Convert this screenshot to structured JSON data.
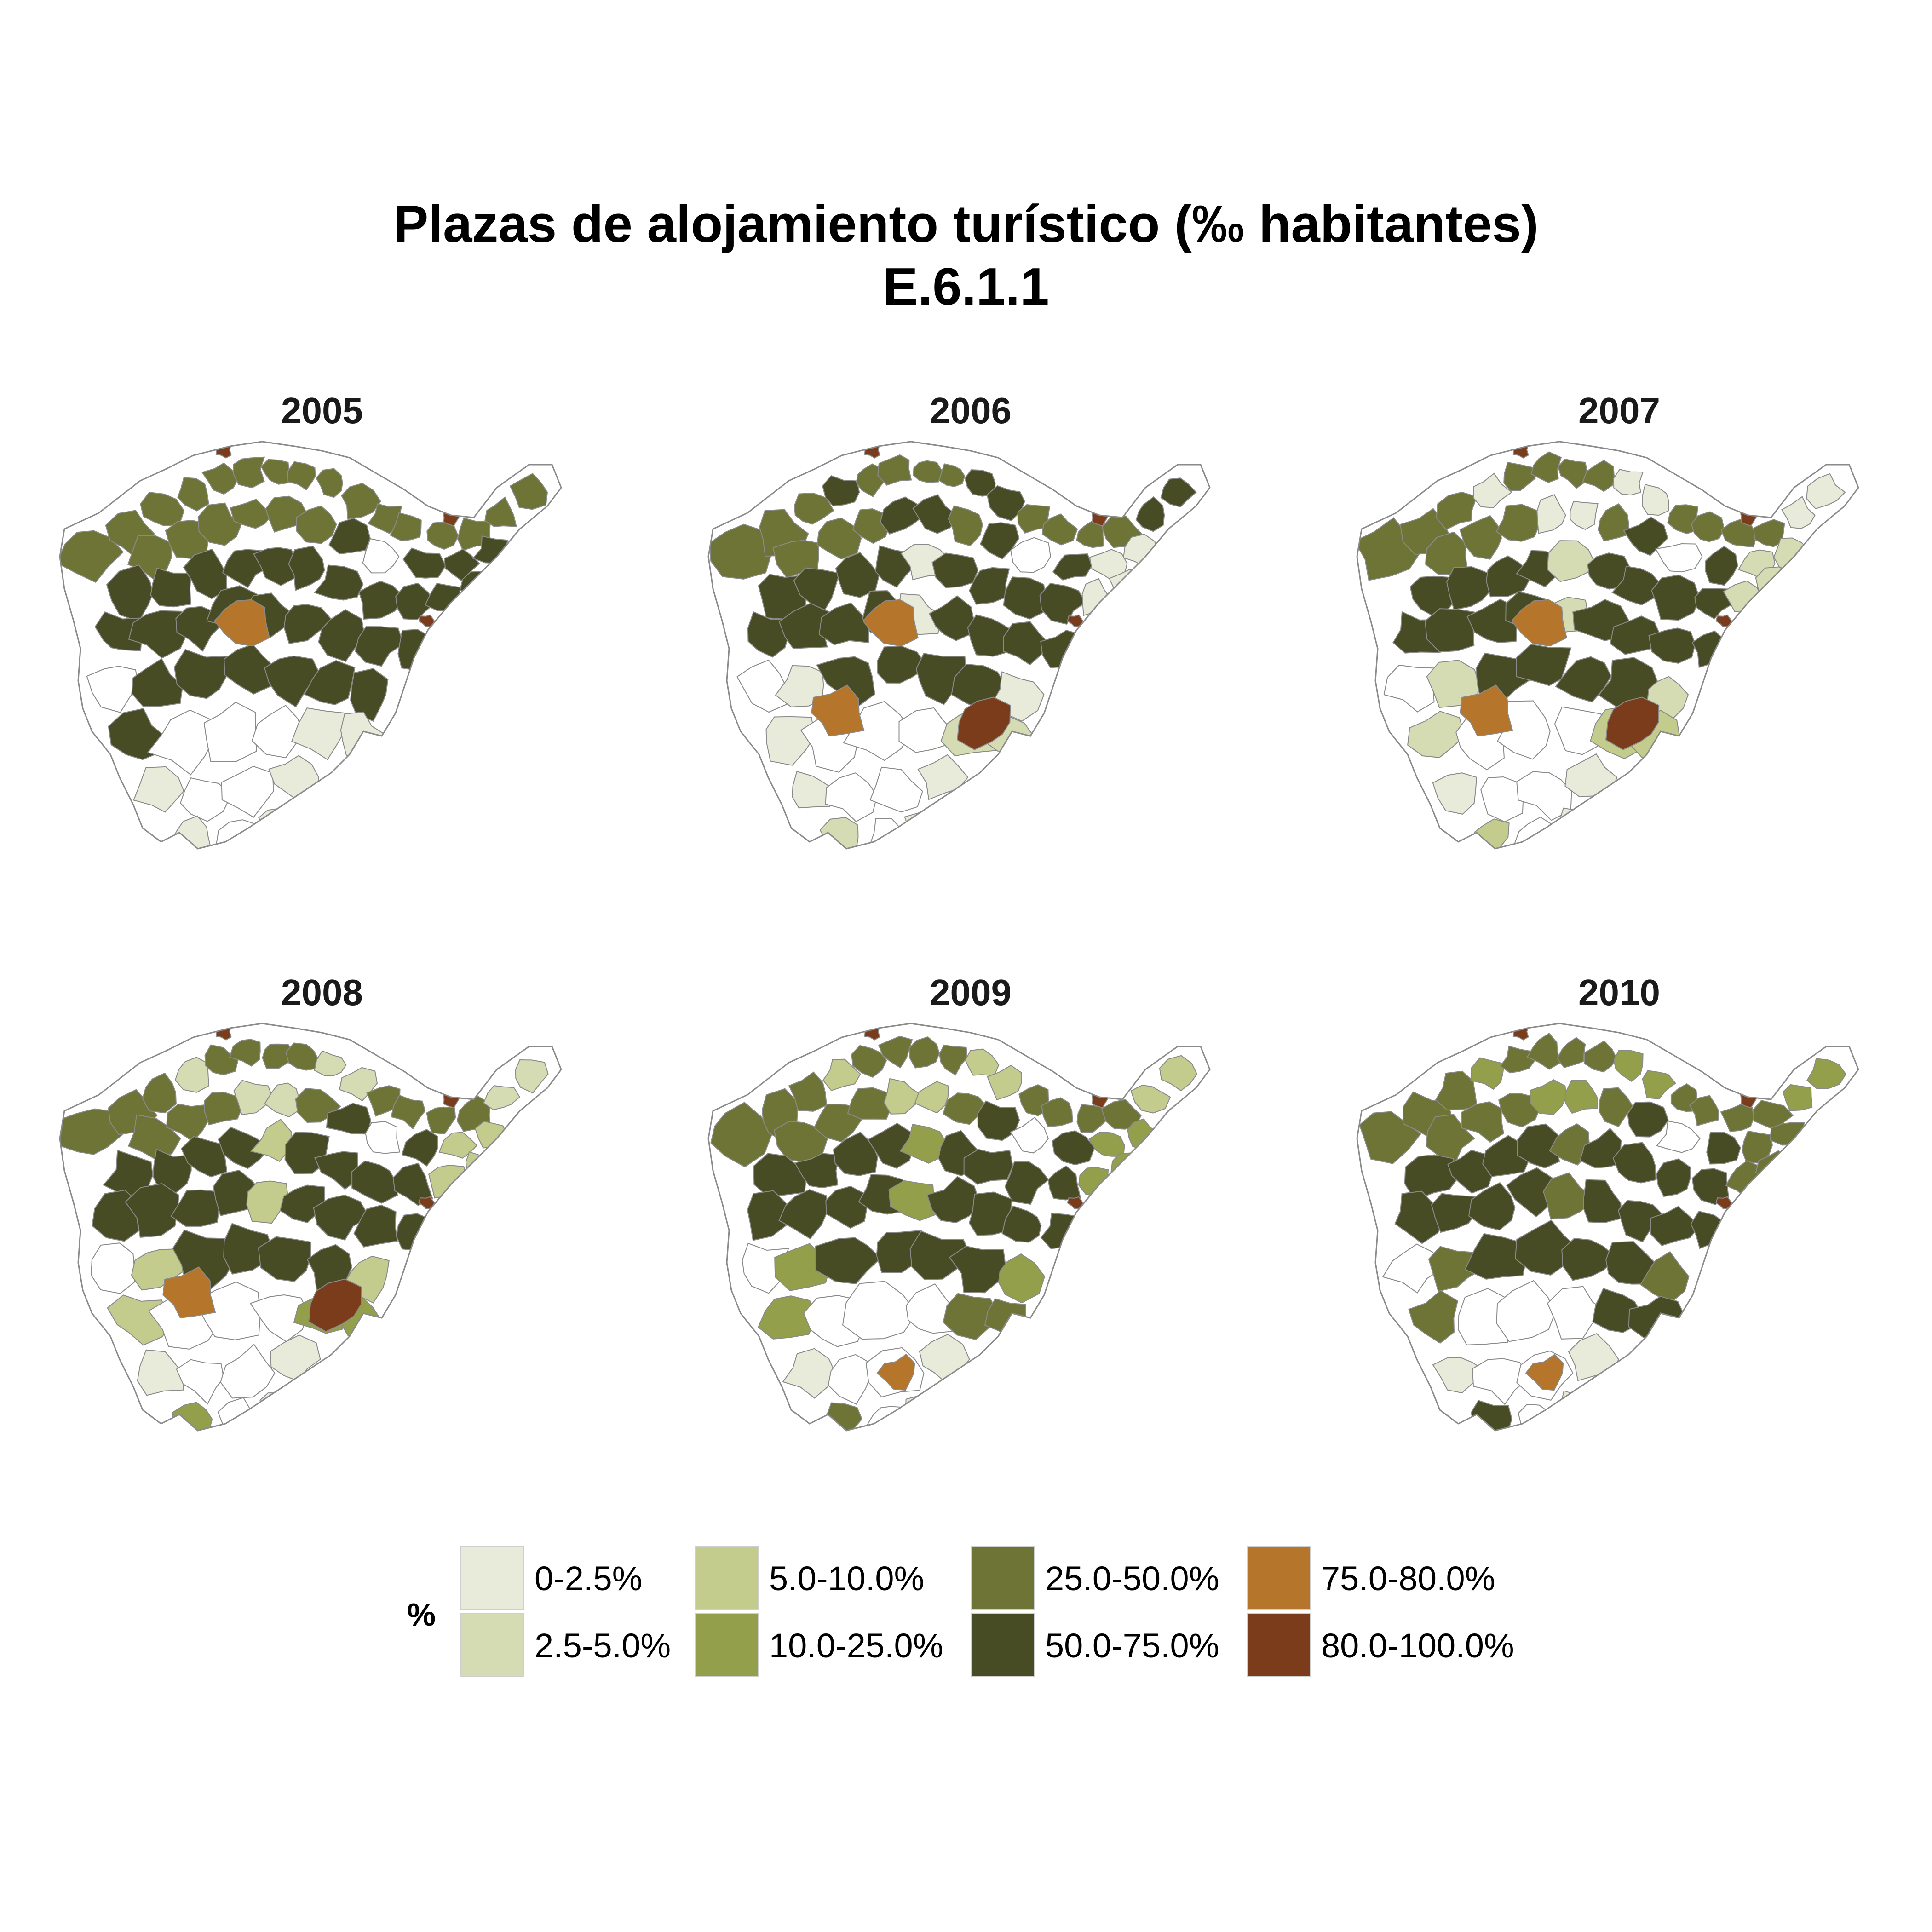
{
  "title": {
    "line1": "Plazas de alojamiento turístico (‰ habitantes)",
    "line2": "E.6.1.1"
  },
  "legend": {
    "title": "%",
    "classes": [
      {
        "label": "0-2.5%",
        "color": "#e8eada"
      },
      {
        "label": "2.5-5.0%",
        "color": "#d5dcb4"
      },
      {
        "label": "5.0-10.0%",
        "color": "#c3cc8d"
      },
      {
        "label": "10.0-25.0%",
        "color": "#949f4b"
      },
      {
        "label": "25.0-50.0%",
        "color": "#6e7436"
      },
      {
        "label": "50.0-75.0%",
        "color": "#474c25"
      },
      {
        "label": "75.0-80.0%",
        "color": "#b5762c"
      },
      {
        "label": "80.0-100.0%",
        "color": "#7a3c1b"
      }
    ]
  },
  "colors": {
    "no_data_fill": "#ffffff",
    "border": "#8a8a8a"
  },
  "panels": [
    {
      "year": "2005",
      "class_shift": 0,
      "orange_west": false,
      "brown_south": false,
      "orange_center": true,
      "orange_southwest": false
    },
    {
      "year": "2006",
      "class_shift": 1,
      "orange_west": true,
      "brown_south": true,
      "orange_center": true,
      "orange_southwest": false
    },
    {
      "year": "2007",
      "class_shift": 2,
      "orange_west": true,
      "brown_south": true,
      "orange_center": true,
      "orange_southwest": false
    },
    {
      "year": "2008",
      "class_shift": 3,
      "orange_west": true,
      "brown_south": true,
      "orange_center": false,
      "orange_southwest": false
    },
    {
      "year": "2009",
      "class_shift": 4,
      "orange_west": false,
      "brown_south": false,
      "orange_center": false,
      "orange_southwest": true
    },
    {
      "year": "2010",
      "class_shift": 5,
      "orange_west": false,
      "brown_south": false,
      "orange_center": false,
      "orange_southwest": true
    }
  ]
}
